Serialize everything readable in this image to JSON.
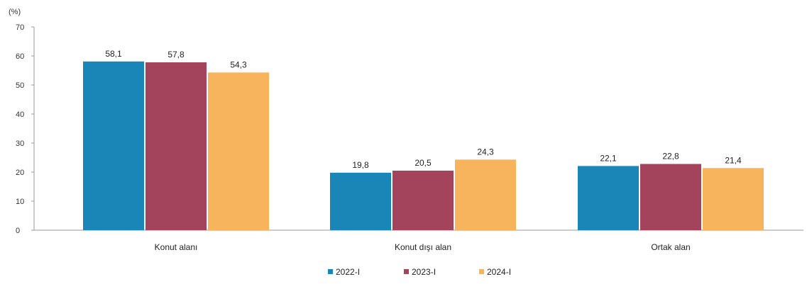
{
  "chart_data": {
    "type": "bar",
    "unit_label": "(%)",
    "categories": [
      "Konut alanı",
      "Konut dışı alan",
      "Ortak alan"
    ],
    "series": [
      {
        "name": "2022-I",
        "color": "#1a86b8",
        "values": [
          58.1,
          19.8,
          22.1
        ],
        "labels": [
          "58,1",
          "19,8",
          "22,1"
        ]
      },
      {
        "name": "2023-I",
        "color": "#a3435c",
        "values": [
          57.8,
          20.5,
          22.8
        ],
        "labels": [
          "57,8",
          "20,5",
          "22,8"
        ]
      },
      {
        "name": "2024-I",
        "color": "#f7b45d",
        "values": [
          54.3,
          24.3,
          21.4
        ],
        "labels": [
          "54,3",
          "24,3",
          "21,4"
        ]
      }
    ],
    "ylim": [
      0,
      70
    ],
    "yticks": [
      0,
      10,
      20,
      30,
      40,
      50,
      60,
      70
    ],
    "legend_position": "bottom-center",
    "grid": false
  }
}
